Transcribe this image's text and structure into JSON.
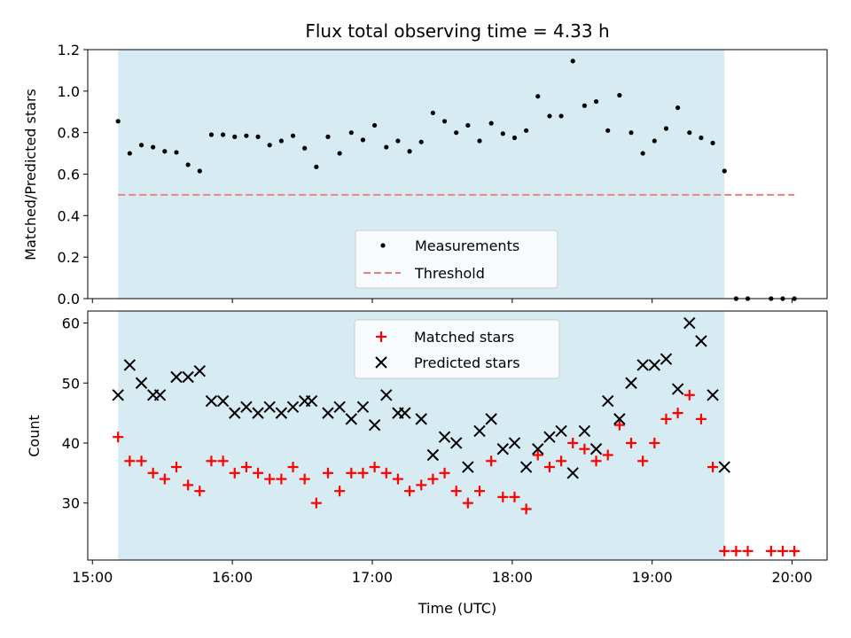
{
  "chart_data": [
    {
      "type": "scatter",
      "title": "Flux total observing time = 4.33 h",
      "ylabel": "Matched/Predicted stars",
      "xlim_minutes_since_15h": [
        -2,
        315
      ],
      "ylim": [
        0,
        1.2
      ],
      "yticks": [
        "0.0",
        "0.2",
        "0.4",
        "0.6",
        "0.8",
        "1.0",
        "1.2"
      ],
      "shaded_span_minutes_since_15h": [
        11,
        271
      ],
      "shade_color": "#add8e6",
      "threshold": {
        "name": "Threshold",
        "value": 0.5,
        "x_range": [
          11,
          301
        ],
        "color": "#f08080"
      },
      "legend": {
        "placement": "lower-center",
        "entries": [
          "Measurements",
          "Threshold"
        ]
      },
      "series": [
        {
          "name": "Measurements",
          "color": "#000000",
          "x": [
            11,
            16,
            21,
            26,
            31,
            36,
            41,
            46,
            51,
            56,
            61,
            66,
            71,
            76,
            81,
            86,
            91,
            96,
            101,
            106,
            111,
            116,
            121,
            126,
            131,
            136,
            141,
            146,
            151,
            156,
            161,
            166,
            171,
            176,
            181,
            186,
            191,
            196,
            201,
            206,
            211,
            216,
            221,
            226,
            231,
            236,
            241,
            246,
            251,
            256,
            261,
            266,
            271,
            276,
            281,
            291,
            296,
            301
          ],
          "y": [
            0.855,
            0.7,
            0.74,
            0.73,
            0.71,
            0.705,
            0.645,
            0.615,
            0.79,
            0.79,
            0.78,
            0.785,
            0.78,
            0.74,
            0.76,
            0.785,
            0.725,
            0.635,
            0.78,
            0.7,
            0.8,
            0.765,
            0.835,
            0.73,
            0.76,
            0.71,
            0.755,
            0.895,
            0.855,
            0.8,
            0.835,
            0.76,
            0.845,
            0.795,
            0.775,
            0.81,
            0.975,
            0.88,
            0.88,
            1.145,
            0.93,
            0.95,
            0.81,
            0.98,
            0.8,
            0.7,
            0.76,
            0.82,
            0.92,
            0.8,
            0.775,
            0.75,
            0.615,
            0.0,
            0.0,
            0.0,
            0.0,
            0.0
          ]
        }
      ]
    },
    {
      "type": "scatter",
      "xlabel": "Time (UTC)",
      "ylabel": "Count",
      "xlim_minutes_since_15h": [
        -2,
        315
      ],
      "ylim": [
        20.5,
        62
      ],
      "yticks": [
        "30",
        "40",
        "50",
        "60"
      ],
      "xticks": [
        "15:00",
        "16:00",
        "17:00",
        "18:00",
        "19:00",
        "20:00"
      ],
      "legend": {
        "placement": "top-center",
        "entries": [
          "Matched stars",
          "Predicted stars"
        ]
      },
      "series": [
        {
          "name": "Matched stars",
          "marker": "plus",
          "color": "#ff0000",
          "x": [
            11,
            16,
            21,
            26,
            31,
            36,
            41,
            46,
            51,
            56,
            61,
            66,
            71,
            76,
            81,
            86,
            91,
            96,
            101,
            106,
            111,
            116,
            121,
            126,
            131,
            136,
            141,
            146,
            151,
            156,
            161,
            166,
            171,
            176,
            181,
            186,
            191,
            196,
            201,
            206,
            211,
            216,
            221,
            226,
            231,
            236,
            241,
            246,
            251,
            256,
            261,
            266,
            271,
            276,
            281,
            291,
            296,
            301
          ],
          "y": [
            41,
            37,
            37,
            35,
            34,
            36,
            33,
            32,
            37,
            37,
            35,
            36,
            35,
            34,
            34,
            36,
            34,
            30,
            35,
            32,
            35,
            35,
            36,
            35,
            34,
            32,
            33,
            34,
            35,
            32,
            30,
            32,
            37,
            31,
            31,
            29,
            38,
            36,
            37,
            40,
            39,
            37,
            38,
            43,
            40,
            37,
            40,
            44,
            45,
            48,
            44,
            36,
            22,
            22,
            22,
            22,
            22,
            22
          ]
        },
        {
          "name": "Predicted stars",
          "marker": "x",
          "color": "#000000",
          "x": [
            11,
            16,
            21,
            26,
            29,
            36,
            41,
            46,
            51,
            56,
            61,
            66,
            71,
            76,
            81,
            86,
            91,
            94,
            101,
            106,
            111,
            116,
            121,
            126,
            131,
            134,
            141,
            146,
            151,
            156,
            161,
            166,
            171,
            176,
            181,
            186,
            191,
            196,
            201,
            206,
            211,
            216,
            221,
            226,
            231,
            236,
            241,
            246,
            251,
            256,
            261,
            266,
            271
          ],
          "y": [
            48,
            53,
            50,
            48,
            48,
            51,
            51,
            52,
            47,
            47,
            45,
            46,
            45,
            46,
            45,
            46,
            47,
            47,
            45,
            46,
            44,
            46,
            43,
            48,
            45,
            45,
            44,
            38,
            41,
            40,
            36,
            42,
            44,
            39,
            40,
            36,
            39,
            41,
            42,
            35,
            42,
            39,
            47,
            44,
            50,
            53,
            53,
            54,
            49,
            60,
            57,
            48,
            36
          ]
        }
      ]
    }
  ]
}
